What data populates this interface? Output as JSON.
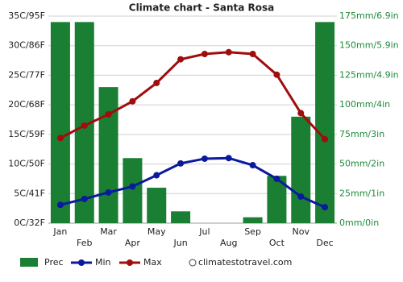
{
  "chart_data": {
    "type": "combo",
    "title": "Climate chart - Santa Rosa",
    "categories": [
      "Jan",
      "Feb",
      "Mar",
      "Apr",
      "May",
      "Jun",
      "Jul",
      "Aug",
      "Sep",
      "Oct",
      "Nov",
      "Dec"
    ],
    "series": [
      {
        "name": "Prec",
        "type": "bar",
        "axis": "y2",
        "color": "#1a7f32",
        "values": [
          170,
          170,
          115,
          55,
          30,
          10,
          0,
          0,
          5,
          40,
          90,
          170
        ]
      },
      {
        "name": "Min",
        "type": "line",
        "color": "#0a1a9c",
        "values": [
          3.1,
          4.1,
          5.2,
          6.2,
          8.1,
          10.1,
          10.9,
          11.0,
          9.8,
          7.5,
          4.5,
          2.7
        ]
      },
      {
        "name": "Max",
        "type": "line",
        "color": "#a00d0d",
        "values": [
          14.4,
          16.5,
          18.4,
          20.6,
          23.7,
          27.7,
          28.6,
          28.9,
          28.6,
          25.1,
          18.6,
          14.2
        ]
      }
    ],
    "ylim": [
      0,
      35
    ],
    "yticks": [
      {
        "value": 0,
        "label": "0C/32F"
      },
      {
        "value": 5,
        "label": "5C/41F"
      },
      {
        "value": 10,
        "label": "10C/50F"
      },
      {
        "value": 15,
        "label": "15C/59F"
      },
      {
        "value": 20,
        "label": "20C/68F"
      },
      {
        "value": 25,
        "label": "25C/77F"
      },
      {
        "value": 30,
        "label": "30C/86F"
      },
      {
        "value": 35,
        "label": "35C/95F"
      }
    ],
    "y2lim": [
      0,
      175
    ],
    "y2ticks": [
      {
        "value": 0,
        "label": "0mm/0in"
      },
      {
        "value": 25,
        "label": "25mm/1in"
      },
      {
        "value": 50,
        "label": "50mm/2in"
      },
      {
        "value": 75,
        "label": "75mm/3in"
      },
      {
        "value": 100,
        "label": "100mm/4in"
      },
      {
        "value": 125,
        "label": "125mm/4.9in"
      },
      {
        "value": 150,
        "label": "150mm/5.9in"
      },
      {
        "value": 175,
        "label": "175mm/6.9in"
      }
    ],
    "grid": true,
    "watermark": "climatestotravel.com"
  }
}
